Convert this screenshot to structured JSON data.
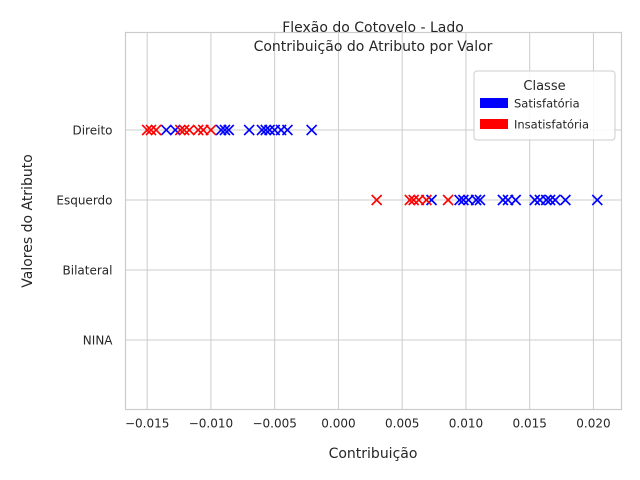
{
  "chart_data": {
    "type": "scatter",
    "title": [
      "Flexão do Cotovelo - Lado",
      "Contribuição do Atributo por Valor"
    ],
    "xlabel": "Contribuição",
    "ylabel": "Valores do Atributo",
    "xlim": [
      -0.0167,
      0.0222
    ],
    "x_ticks": [
      -0.015,
      -0.01,
      -0.005,
      0.0,
      0.005,
      0.01,
      0.015,
      0.02
    ],
    "x_tick_labels": [
      "−0.015",
      "−0.010",
      "−0.005",
      "0.000",
      "0.005",
      "0.010",
      "0.015",
      "0.020"
    ],
    "categories": [
      "Direito",
      "Esquerdo",
      "Bilateral",
      "NINA"
    ],
    "grid": true,
    "marker": "x",
    "legend": {
      "title": "Classe",
      "placement": "upper right",
      "entries": [
        {
          "name": "Satisfatória",
          "color": "#0000ff"
        },
        {
          "name": "Insatisfatória",
          "color": "#ff0000"
        }
      ]
    },
    "series": [
      {
        "name": "Satisfatória",
        "color": "#0000ff",
        "points": [
          {
            "category": "Direito",
            "x": -0.0135
          },
          {
            "category": "Direito",
            "x": -0.0128
          },
          {
            "category": "Direito",
            "x": -0.0092
          },
          {
            "category": "Direito",
            "x": -0.0089
          },
          {
            "category": "Direito",
            "x": -0.0086
          },
          {
            "category": "Direito",
            "x": -0.007
          },
          {
            "category": "Direito",
            "x": -0.006
          },
          {
            "category": "Direito",
            "x": -0.0057
          },
          {
            "category": "Direito",
            "x": -0.0054
          },
          {
            "category": "Direito",
            "x": -0.005
          },
          {
            "category": "Direito",
            "x": -0.0045
          },
          {
            "category": "Direito",
            "x": -0.004
          },
          {
            "category": "Direito",
            "x": -0.0021
          },
          {
            "category": "Esquerdo",
            "x": 0.0073
          },
          {
            "category": "Esquerdo",
            "x": 0.0095
          },
          {
            "category": "Esquerdo",
            "x": 0.0098
          },
          {
            "category": "Esquerdo",
            "x": 0.0102
          },
          {
            "category": "Esquerdo",
            "x": 0.0108
          },
          {
            "category": "Esquerdo",
            "x": 0.0111
          },
          {
            "category": "Esquerdo",
            "x": 0.0129
          },
          {
            "category": "Esquerdo",
            "x": 0.0133
          },
          {
            "category": "Esquerdo",
            "x": 0.0139
          },
          {
            "category": "Esquerdo",
            "x": 0.0154
          },
          {
            "category": "Esquerdo",
            "x": 0.0158
          },
          {
            "category": "Esquerdo",
            "x": 0.0163
          },
          {
            "category": "Esquerdo",
            "x": 0.0166
          },
          {
            "category": "Esquerdo",
            "x": 0.017
          },
          {
            "category": "Esquerdo",
            "x": 0.0178
          },
          {
            "category": "Esquerdo",
            "x": 0.0203
          }
        ]
      },
      {
        "name": "Insatisfatória",
        "color": "#ff0000",
        "points": [
          {
            "category": "Direito",
            "x": -0.015
          },
          {
            "category": "Direito",
            "x": -0.0147
          },
          {
            "category": "Direito",
            "x": -0.0143
          },
          {
            "category": "Direito",
            "x": -0.0124
          },
          {
            "category": "Direito",
            "x": -0.0121
          },
          {
            "category": "Direito",
            "x": -0.0117
          },
          {
            "category": "Direito",
            "x": -0.011
          },
          {
            "category": "Direito",
            "x": -0.0106
          },
          {
            "category": "Direito",
            "x": -0.01
          },
          {
            "category": "Esquerdo",
            "x": 0.003
          },
          {
            "category": "Esquerdo",
            "x": 0.0056
          },
          {
            "category": "Esquerdo",
            "x": 0.0059
          },
          {
            "category": "Esquerdo",
            "x": 0.0063
          },
          {
            "category": "Esquerdo",
            "x": 0.0069
          },
          {
            "category": "Esquerdo",
            "x": 0.0086
          }
        ]
      }
    ]
  }
}
